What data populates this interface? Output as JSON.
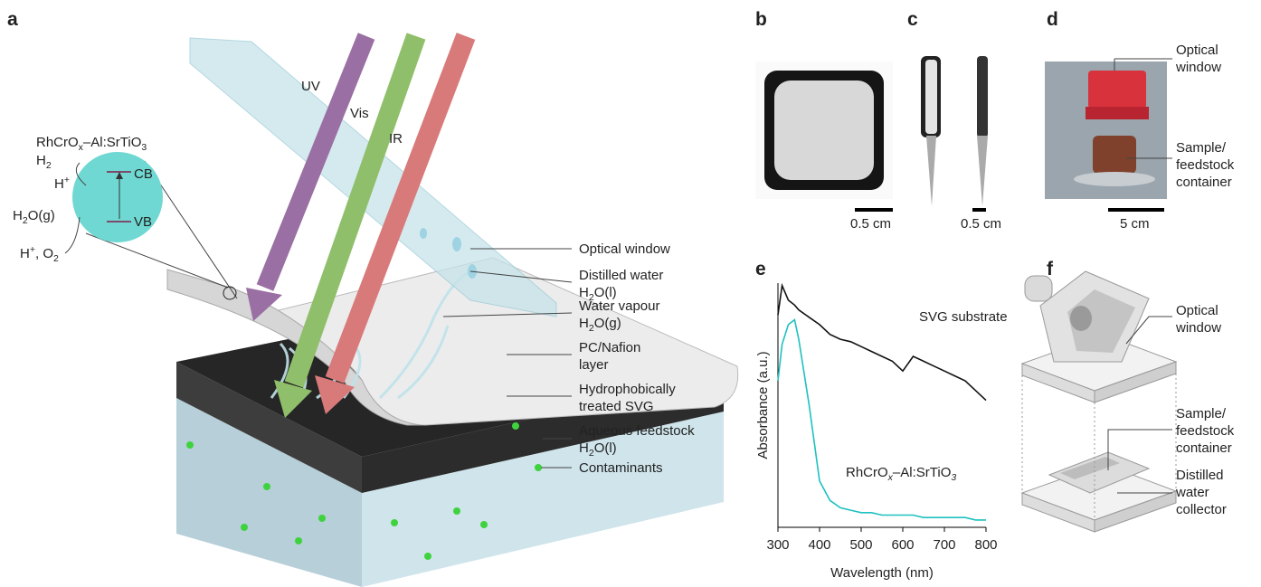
{
  "panel_labels": [
    "a",
    "b",
    "c",
    "d",
    "e",
    "f"
  ],
  "panel_a": {
    "rays": [
      "UV",
      "Vis",
      "IR"
    ],
    "catalyst": [
      "RhCrO",
      "x",
      "–Al:SrTiO",
      "3"
    ],
    "h2": [
      "H",
      "2"
    ],
    "h_plus": [
      "H",
      "+"
    ],
    "cb": "CB",
    "vb": "VB",
    "h2o_g": [
      "H",
      "2",
      "O(g)"
    ],
    "products": [
      "H",
      "+",
      ", O",
      "2"
    ],
    "callouts": [
      [
        "Optical window"
      ],
      [
        "Distilled water",
        [
          "H",
          "2",
          "O(l)"
        ]
      ],
      [
        "Water vapour",
        [
          "H",
          "2",
          "O(g)"
        ]
      ],
      [
        "PC/Nafion",
        "layer"
      ],
      [
        "Hydrophobically",
        "treated SVG"
      ],
      [
        "Aqueous feedstock",
        [
          "H",
          "2",
          "O(l)"
        ]
      ],
      [
        "Contaminants"
      ]
    ]
  },
  "panel_b": {
    "scale_bar": "0.5 cm"
  },
  "panel_c": {
    "scale_bar": "0.5 cm"
  },
  "panel_d": {
    "callouts": [
      [
        "Optical",
        "window"
      ],
      [
        "Sample/",
        "feedstock",
        "container"
      ]
    ],
    "scale_bar": "5 cm"
  },
  "panel_f": {
    "callouts": [
      [
        "Optical",
        "window"
      ],
      [
        "Sample/",
        "feedstock",
        "container"
      ],
      [
        "Distilled",
        "water",
        "collector"
      ]
    ]
  },
  "chart_data": {
    "type": "line",
    "xlabel": "Wavelength (nm)",
    "ylabel": "Absorbance (a.u.)",
    "x": [
      300,
      310,
      325,
      340,
      350,
      375,
      400,
      425,
      450,
      475,
      500,
      525,
      550,
      575,
      600,
      625,
      650,
      675,
      700,
      725,
      750,
      775,
      800
    ],
    "xlim": [
      300,
      800
    ],
    "xticks": [
      300,
      400,
      500,
      600,
      700,
      800
    ],
    "ylim": [
      0,
      1
    ],
    "series": [
      {
        "name": "SVG substrate",
        "color": "#111111",
        "values": [
          0.87,
          0.99,
          0.93,
          0.91,
          0.89,
          0.86,
          0.83,
          0.79,
          0.77,
          0.76,
          0.74,
          0.72,
          0.7,
          0.68,
          0.64,
          0.7,
          0.68,
          0.66,
          0.64,
          0.62,
          0.6,
          0.56,
          0.52
        ]
      },
      {
        "name": [
          "RhCrO",
          "x",
          "–Al:SrTiO",
          "3"
        ],
        "color": "#1fc0c0",
        "values": [
          0.6,
          0.75,
          0.83,
          0.85,
          0.77,
          0.5,
          0.19,
          0.11,
          0.08,
          0.07,
          0.06,
          0.06,
          0.05,
          0.05,
          0.05,
          0.05,
          0.04,
          0.04,
          0.04,
          0.04,
          0.04,
          0.03,
          0.03
        ]
      }
    ]
  }
}
